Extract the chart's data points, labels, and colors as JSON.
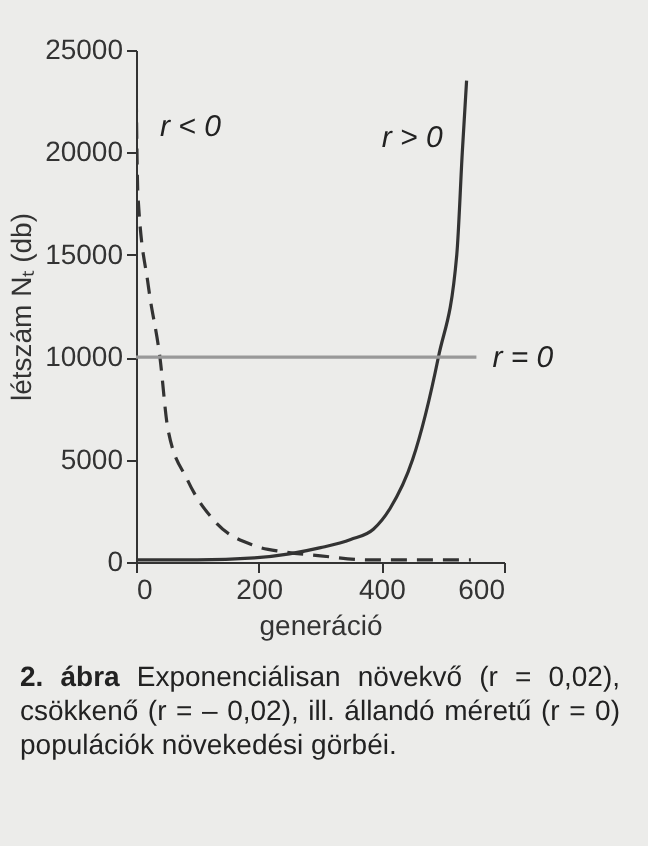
{
  "chart_data": {
    "type": "line",
    "xlabel": "generáció",
    "ylabel": "létszám Nₜ (db)",
    "xlim": [
      0,
      600
    ],
    "xticks": [
      0,
      200,
      400,
      600
    ],
    "ylim": [
      0,
      25000
    ],
    "yticks": [
      0,
      5000,
      10000,
      15000,
      20000,
      25000
    ],
    "series": [
      {
        "name": "r < 0",
        "color": "#333333",
        "line_style": "dashed",
        "x": [
          0,
          3,
          20,
          39,
          52,
          84,
          128,
          193,
          240,
          301,
          380,
          451,
          546
        ],
        "values": [
          24000,
          18000,
          13500,
          10000,
          6500,
          4000,
          2000,
          800,
          500,
          300,
          100,
          100,
          100
        ]
      },
      {
        "name": "r > 0",
        "color": "#333333",
        "line_style": "solid",
        "x": [
          0,
          100,
          193,
          250,
          301,
          350,
          387,
          414,
          451,
          493,
          523,
          532,
          539
        ],
        "values": [
          100,
          100,
          200,
          400,
          700,
          1100,
          1600,
          2600,
          5000,
          10000,
          15000,
          20000,
          23500
        ]
      },
      {
        "name": "r = 0",
        "color": "#999999",
        "line_style": "solid",
        "x": [
          0,
          555
        ],
        "values": [
          10000,
          10000
        ]
      }
    ],
    "annotations": [
      "2. ábra",
      "Exponenciálisan növekvő (r = 0,02), csökkenő (r = – 0,02), ill. állandó méretű (r = 0) populációk növekedési görbéi."
    ]
  }
}
